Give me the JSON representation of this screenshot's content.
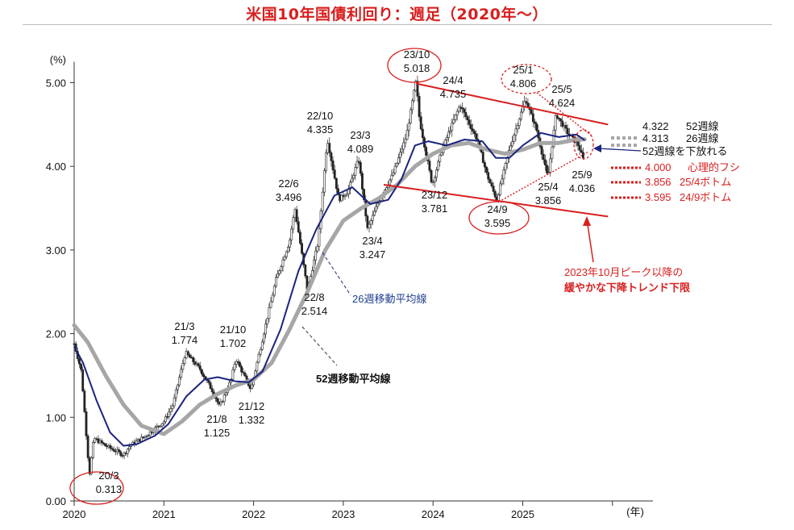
{
  "title": "米国10年国債利回り：週足（2020年～）",
  "colors": {
    "title": "#d81f1f",
    "candle": "#222222",
    "ma26": "#1a237e",
    "ma52": "#a6a6a6",
    "trend": "#d81f1f",
    "circle": "#d81f1f"
  },
  "chart_data": {
    "type": "candlestick",
    "y_unit_label": "(%)",
    "x_unit_label": "(年)",
    "ylim": [
      0,
      5.25
    ],
    "y_ticks": [
      "0.00",
      "1.00",
      "2.00",
      "3.00",
      "4.00",
      "5.00"
    ],
    "x_ticks": [
      "2020",
      "2021",
      "2022",
      "2023",
      "2024",
      "2025"
    ],
    "grid": false,
    "close_path": [
      [
        2020.0,
        1.88
      ],
      [
        2020.08,
        1.55
      ],
      [
        2020.17,
        0.313
      ],
      [
        2020.22,
        0.75
      ],
      [
        2020.35,
        0.66
      ],
      [
        2020.55,
        0.55
      ],
      [
        2020.62,
        0.66
      ],
      [
        2020.8,
        0.78
      ],
      [
        2021.0,
        0.95
      ],
      [
        2021.1,
        1.15
      ],
      [
        2021.24,
        1.774
      ],
      [
        2021.4,
        1.58
      ],
      [
        2021.55,
        1.3
      ],
      [
        2021.62,
        1.125
      ],
      [
        2021.75,
        1.45
      ],
      [
        2021.8,
        1.702
      ],
      [
        2021.97,
        1.332
      ],
      [
        2022.08,
        1.85
      ],
      [
        2022.25,
        2.65
      ],
      [
        2022.4,
        3.1
      ],
      [
        2022.46,
        3.496
      ],
      [
        2022.6,
        2.514
      ],
      [
        2022.72,
        3.1
      ],
      [
        2022.82,
        4.335
      ],
      [
        2022.95,
        3.6
      ],
      [
        2023.05,
        3.7
      ],
      [
        2023.17,
        4.089
      ],
      [
        2023.27,
        3.247
      ],
      [
        2023.4,
        3.6
      ],
      [
        2023.55,
        3.9
      ],
      [
        2023.7,
        4.35
      ],
      [
        2023.81,
        5.018
      ],
      [
        2023.85,
        4.55
      ],
      [
        2023.99,
        3.781
      ],
      [
        2024.1,
        4.2
      ],
      [
        2024.3,
        4.735
      ],
      [
        2024.5,
        4.3
      ],
      [
        2024.6,
        3.9
      ],
      [
        2024.71,
        3.595
      ],
      [
        2024.85,
        4.2
      ],
      [
        2025.03,
        4.806
      ],
      [
        2025.15,
        4.45
      ],
      [
        2025.28,
        3.856
      ],
      [
        2025.37,
        4.624
      ],
      [
        2025.5,
        4.4
      ],
      [
        2025.62,
        4.25
      ],
      [
        2025.69,
        4.036
      ]
    ],
    "series": [
      {
        "name": "26週移動平均線",
        "points": [
          [
            2020.0,
            1.85
          ],
          [
            2020.1,
            1.65
          ],
          [
            2020.25,
            1.2
          ],
          [
            2020.4,
            0.82
          ],
          [
            2020.55,
            0.66
          ],
          [
            2020.7,
            0.68
          ],
          [
            2020.9,
            0.78
          ],
          [
            2021.05,
            0.92
          ],
          [
            2021.25,
            1.25
          ],
          [
            2021.45,
            1.45
          ],
          [
            2021.6,
            1.48
          ],
          [
            2021.8,
            1.43
          ],
          [
            2021.95,
            1.42
          ],
          [
            2022.1,
            1.55
          ],
          [
            2022.3,
            2.05
          ],
          [
            2022.5,
            2.75
          ],
          [
            2022.7,
            3.25
          ],
          [
            2022.9,
            3.65
          ],
          [
            2023.1,
            3.75
          ],
          [
            2023.3,
            3.55
          ],
          [
            2023.5,
            3.6
          ],
          [
            2023.65,
            3.85
          ],
          [
            2023.8,
            4.25
          ],
          [
            2023.95,
            4.3
          ],
          [
            2024.15,
            4.25
          ],
          [
            2024.35,
            4.32
          ],
          [
            2024.55,
            4.3
          ],
          [
            2024.7,
            4.1
          ],
          [
            2024.85,
            4.1
          ],
          [
            2025.0,
            4.25
          ],
          [
            2025.2,
            4.4
          ],
          [
            2025.4,
            4.35
          ],
          [
            2025.6,
            4.38
          ],
          [
            2025.69,
            4.313
          ]
        ]
      },
      {
        "name": "52週移動平均線",
        "points": [
          [
            2020.0,
            2.1
          ],
          [
            2020.15,
            1.9
          ],
          [
            2020.35,
            1.5
          ],
          [
            2020.55,
            1.15
          ],
          [
            2020.75,
            0.9
          ],
          [
            2021.0,
            0.8
          ],
          [
            2021.2,
            0.95
          ],
          [
            2021.4,
            1.15
          ],
          [
            2021.6,
            1.28
          ],
          [
            2021.8,
            1.38
          ],
          [
            2022.0,
            1.45
          ],
          [
            2022.2,
            1.65
          ],
          [
            2022.4,
            2.05
          ],
          [
            2022.6,
            2.5
          ],
          [
            2022.8,
            3.0
          ],
          [
            2023.0,
            3.35
          ],
          [
            2023.2,
            3.5
          ],
          [
            2023.4,
            3.62
          ],
          [
            2023.6,
            3.78
          ],
          [
            2023.8,
            4.0
          ],
          [
            2024.0,
            4.15
          ],
          [
            2024.2,
            4.25
          ],
          [
            2024.4,
            4.28
          ],
          [
            2024.6,
            4.2
          ],
          [
            2024.8,
            4.15
          ],
          [
            2025.0,
            4.2
          ],
          [
            2025.2,
            4.28
          ],
          [
            2025.4,
            4.28
          ],
          [
            2025.6,
            4.32
          ],
          [
            2025.69,
            4.322
          ]
        ]
      }
    ],
    "trend_lines": [
      {
        "name": "upper",
        "x": [
          2023.81,
          2025.95
        ],
        "y": [
          4.99,
          4.5
        ]
      },
      {
        "name": "lower",
        "x": [
          2023.45,
          2025.95
        ],
        "y": [
          3.78,
          3.4
        ]
      }
    ],
    "points": [
      {
        "x": 2020.17,
        "y": 0.313,
        "label": "20/3",
        "value": "0.313",
        "circled": true
      },
      {
        "x": 2021.24,
        "y": 1.774,
        "label": "21/3",
        "value": "1.774"
      },
      {
        "x": 2021.62,
        "y": 1.125,
        "label": "21/8",
        "value": "1.125"
      },
      {
        "x": 2021.8,
        "y": 1.702,
        "label": "21/10",
        "value": "1.702"
      },
      {
        "x": 2021.97,
        "y": 1.332,
        "label": "21/12",
        "value": "1.332"
      },
      {
        "x": 2022.46,
        "y": 3.496,
        "label": "22/6",
        "value": "3.496"
      },
      {
        "x": 2022.6,
        "y": 2.514,
        "label": "22/8",
        "value": "2.514"
      },
      {
        "x": 2022.82,
        "y": 4.335,
        "label": "22/10",
        "value": "4.335"
      },
      {
        "x": 2023.17,
        "y": 4.089,
        "label": "23/3",
        "value": "4.089"
      },
      {
        "x": 2023.27,
        "y": 3.247,
        "label": "23/4",
        "value": "3.247"
      },
      {
        "x": 2023.81,
        "y": 5.018,
        "label": "23/10",
        "value": "5.018",
        "circled": true
      },
      {
        "x": 2023.99,
        "y": 3.781,
        "label": "23/12",
        "value": "3.781"
      },
      {
        "x": 2024.3,
        "y": 4.735,
        "label": "24/4",
        "value": "4.735"
      },
      {
        "x": 2024.71,
        "y": 3.595,
        "label": "24/9",
        "value": "3.595",
        "circled": true
      },
      {
        "x": 2025.03,
        "y": 4.806,
        "label": "25/1",
        "value": "4.806",
        "circled": true
      },
      {
        "x": 2025.28,
        "y": 3.856,
        "label": "25/4",
        "value": "3.856"
      },
      {
        "x": 2025.37,
        "y": 4.624,
        "label": "25/5",
        "value": "4.624"
      },
      {
        "x": 2025.69,
        "y": 4.036,
        "label": "25/9",
        "value": "4.036",
        "circled": true
      }
    ],
    "legend_right": [
      {
        "value": "4.322",
        "label": "52週線",
        "color": "#a6a6a6"
      },
      {
        "value": "4.313",
        "label": "26週線",
        "color": "#a6a6a6"
      },
      {
        "value": "",
        "label": "52週線を下放れる",
        "color": "#1f3f8f"
      },
      {
        "value": "4.000",
        "label": "心理的フシ",
        "color": "#d81f1f"
      },
      {
        "value": "3.856",
        "label": "25/4ボトム",
        "color": "#d81f1f"
      },
      {
        "value": "3.595",
        "label": "24/9ボトム",
        "color": "#d81f1f"
      }
    ],
    "annotations": {
      "ma26_label": "26週移動平均線",
      "ma52_label": "52週移動平均線",
      "trend_note_1": "2023年10月ピーク以降の",
      "trend_note_2": "緩やかな下降トレンド下限"
    }
  }
}
